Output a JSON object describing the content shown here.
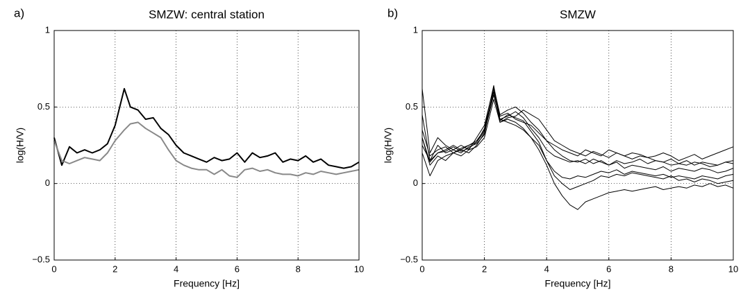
{
  "chart_data": [
    {
      "type": "line",
      "panel_label": "a)",
      "title": "SMZW: central station",
      "xlabel": "Frequency [Hz]",
      "ylabel": "log(H/V)",
      "x": [
        0,
        0.25,
        0.5,
        0.75,
        1,
        1.25,
        1.5,
        1.75,
        2,
        2.3,
        2.5,
        2.75,
        3,
        3.25,
        3.5,
        3.75,
        4,
        4.25,
        4.5,
        4.75,
        5,
        5.25,
        5.5,
        5.75,
        6,
        6.25,
        6.5,
        6.75,
        7,
        7.25,
        7.5,
        7.75,
        8,
        8.25,
        8.5,
        8.75,
        9,
        9.25,
        9.5,
        9.75,
        10
      ],
      "series": [
        {
          "color": "#000000",
          "values": [
            0.3,
            0.12,
            0.24,
            0.2,
            0.22,
            0.2,
            0.22,
            0.26,
            0.38,
            0.62,
            0.5,
            0.48,
            0.42,
            0.43,
            0.36,
            0.32,
            0.25,
            0.2,
            0.18,
            0.16,
            0.14,
            0.17,
            0.15,
            0.16,
            0.2,
            0.14,
            0.2,
            0.17,
            0.18,
            0.2,
            0.14,
            0.16,
            0.15,
            0.18,
            0.14,
            0.16,
            0.12,
            0.11,
            0.1,
            0.11,
            0.14
          ]
        },
        {
          "color": "#888888",
          "values": [
            0.28,
            0.15,
            0.13,
            0.15,
            0.17,
            0.16,
            0.15,
            0.2,
            0.28,
            0.35,
            0.39,
            0.4,
            0.36,
            0.33,
            0.3,
            0.22,
            0.15,
            0.12,
            0.1,
            0.09,
            0.09,
            0.06,
            0.09,
            0.05,
            0.04,
            0.09,
            0.1,
            0.08,
            0.09,
            0.07,
            0.06,
            0.06,
            0.05,
            0.07,
            0.06,
            0.08,
            0.07,
            0.06,
            0.07,
            0.08,
            0.09
          ]
        }
      ],
      "xlim": [
        0,
        10
      ],
      "xticks": [
        0,
        2,
        4,
        6,
        8,
        10
      ],
      "ylim": [
        -0.5,
        1
      ],
      "yticks": [
        {
          "value": -0.5,
          "label": "−0.5"
        },
        0,
        0.5,
        1
      ],
      "grid": true
    },
    {
      "type": "line",
      "panel_label": "b)",
      "title": "SMZW",
      "xlabel": "Frequency [Hz]",
      "ylabel": "log(H/V)",
      "x": [
        0,
        0.25,
        0.5,
        0.75,
        1,
        1.25,
        1.5,
        1.75,
        2,
        2.3,
        2.5,
        2.75,
        3,
        3.25,
        3.5,
        3.75,
        4,
        4.25,
        4.5,
        4.75,
        5,
        5.25,
        5.5,
        5.75,
        6,
        6.25,
        6.5,
        6.75,
        7,
        7.25,
        7.5,
        7.75,
        8,
        8.25,
        8.5,
        8.75,
        9,
        9.25,
        9.5,
        9.75,
        10
      ],
      "series": [
        {
          "color": "#000000",
          "values": [
            0.45,
            0.15,
            0.2,
            0.22,
            0.25,
            0.22,
            0.25,
            0.28,
            0.35,
            0.6,
            0.4,
            0.42,
            0.4,
            0.36,
            0.3,
            0.22,
            0.12,
            0.0,
            -0.08,
            -0.14,
            -0.17,
            -0.12,
            -0.1,
            -0.08,
            -0.06,
            -0.05,
            -0.04,
            -0.05,
            -0.04,
            -0.03,
            -0.02,
            -0.04,
            -0.03,
            -0.02,
            -0.03,
            -0.01,
            -0.02,
            0.0,
            -0.02,
            -0.01,
            -0.03
          ]
        },
        {
          "color": "#000000",
          "values": [
            0.62,
            0.2,
            0.3,
            0.25,
            0.22,
            0.25,
            0.22,
            0.3,
            0.38,
            0.63,
            0.45,
            0.48,
            0.5,
            0.46,
            0.4,
            0.35,
            0.28,
            0.25,
            0.22,
            0.2,
            0.18,
            0.22,
            0.2,
            0.18,
            0.22,
            0.2,
            0.18,
            0.2,
            0.19,
            0.17,
            0.18,
            0.2,
            0.18,
            0.15,
            0.17,
            0.19,
            0.16,
            0.18,
            0.2,
            0.22,
            0.24
          ]
        },
        {
          "color": "#000000",
          "values": [
            0.3,
            0.12,
            0.18,
            0.15,
            0.2,
            0.22,
            0.2,
            0.25,
            0.33,
            0.58,
            0.42,
            0.4,
            0.38,
            0.35,
            0.3,
            0.25,
            0.15,
            0.05,
            0.0,
            -0.04,
            -0.02,
            0.0,
            0.02,
            0.05,
            0.04,
            0.06,
            0.05,
            0.07,
            0.06,
            0.05,
            0.04,
            0.03,
            0.05,
            0.02,
            0.03,
            0.01,
            0.03,
            0.02,
            0.0,
            0.01,
            0.02
          ]
        },
        {
          "color": "#000000",
          "values": [
            0.25,
            0.15,
            0.25,
            0.2,
            0.22,
            0.2,
            0.24,
            0.26,
            0.32,
            0.62,
            0.44,
            0.46,
            0.42,
            0.4,
            0.38,
            0.33,
            0.28,
            0.22,
            0.18,
            0.15,
            0.14,
            0.16,
            0.13,
            0.15,
            0.12,
            0.14,
            0.1,
            0.12,
            0.11,
            0.1,
            0.09,
            0.11,
            0.08,
            0.1,
            0.09,
            0.08,
            0.1,
            0.09,
            0.07,
            0.08,
            0.1
          ]
        },
        {
          "color": "#000000",
          "values": [
            0.35,
            0.18,
            0.22,
            0.24,
            0.2,
            0.23,
            0.25,
            0.27,
            0.36,
            0.64,
            0.42,
            0.44,
            0.47,
            0.43,
            0.36,
            0.3,
            0.22,
            0.18,
            0.16,
            0.14,
            0.15,
            0.13,
            0.16,
            0.14,
            0.12,
            0.15,
            0.13,
            0.14,
            0.16,
            0.13,
            0.15,
            0.14,
            0.12,
            0.13,
            0.15,
            0.12,
            0.14,
            0.13,
            0.12,
            0.14,
            0.13
          ]
        },
        {
          "color": "#000000",
          "values": [
            0.2,
            0.05,
            0.15,
            0.18,
            0.2,
            0.18,
            0.22,
            0.24,
            0.3,
            0.55,
            0.4,
            0.43,
            0.44,
            0.48,
            0.45,
            0.42,
            0.35,
            0.28,
            0.25,
            0.22,
            0.2,
            0.18,
            0.21,
            0.19,
            0.17,
            0.2,
            0.18,
            0.16,
            0.18,
            0.17,
            0.15,
            0.14,
            0.16,
            0.13,
            0.12,
            0.14,
            0.13,
            0.11,
            0.12,
            0.14,
            0.15
          ]
        },
        {
          "color": "#000000",
          "values": [
            0.3,
            0.14,
            0.2,
            0.21,
            0.24,
            0.21,
            0.23,
            0.27,
            0.34,
            0.6,
            0.41,
            0.45,
            0.43,
            0.41,
            0.34,
            0.27,
            0.15,
            0.08,
            0.04,
            0.03,
            0.05,
            0.04,
            0.06,
            0.08,
            0.07,
            0.09,
            0.06,
            0.08,
            0.07,
            0.06,
            0.05,
            0.06,
            0.04,
            0.05,
            0.04,
            0.03,
            0.05,
            0.04,
            0.03,
            0.05,
            0.06
          ]
        }
      ],
      "xlim": [
        0,
        10
      ],
      "xticks": [
        0,
        2,
        4,
        6,
        8,
        10
      ],
      "ylim": [
        -0.5,
        1
      ],
      "yticks": [
        {
          "value": -0.5,
          "label": "−0.5"
        },
        0,
        0.5,
        1
      ],
      "grid": true
    }
  ]
}
